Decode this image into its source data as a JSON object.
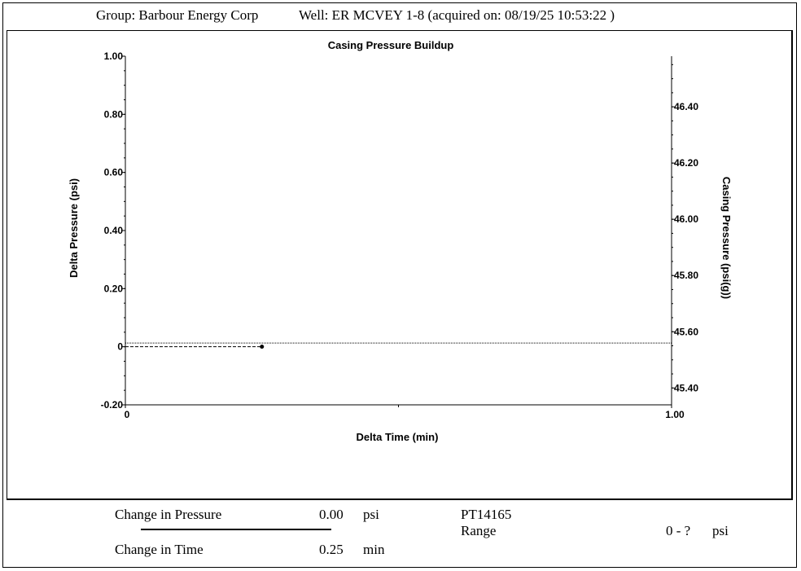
{
  "header": {
    "group": "Group: Barbour Energy Corp",
    "well": "Well: ER MCVEY 1-8 (acquired on: 08/19/25 10:53:22 )"
  },
  "chart_data": {
    "type": "line",
    "title": "Casing Pressure Buildup",
    "xlabel": "Delta Time (min)",
    "ylabel": "Delta Pressure (psi)",
    "y2label": "Casing Pressure (psi(g))",
    "xlim": [
      0,
      1.0
    ],
    "ylim": [
      -0.2,
      1.0
    ],
    "y2lim": [
      45.34,
      46.58
    ],
    "x_ticks": [
      "0",
      "1.00"
    ],
    "y_ticks": [
      {
        "v": 1.0,
        "label": "1.00"
      },
      {
        "v": 0.8,
        "label": "0.80"
      },
      {
        "v": 0.6,
        "label": "0.60"
      },
      {
        "v": 0.4,
        "label": "0.40"
      },
      {
        "v": 0.2,
        "label": "0.20"
      },
      {
        "v": 0.0,
        "label": "0"
      },
      {
        "v": -0.2,
        "label": "-0.20"
      }
    ],
    "y2_ticks": [
      {
        "v": 46.4,
        "label": "46.40"
      },
      {
        "v": 46.2,
        "label": "46.20"
      },
      {
        "v": 46.0,
        "label": "46.00"
      },
      {
        "v": 45.8,
        "label": "45.80"
      },
      {
        "v": 45.6,
        "label": "45.60"
      },
      {
        "v": 45.4,
        "label": "45.40"
      }
    ],
    "series": [
      {
        "axis": "left",
        "style": "dashed",
        "x": [
          0,
          0.25
        ],
        "y": [
          0,
          0
        ]
      },
      {
        "axis": "right",
        "style": "dotted",
        "x": [
          0,
          1.0
        ],
        "y": [
          45.56,
          45.56
        ]
      }
    ],
    "marker": {
      "x": 0.25,
      "y": 0
    }
  },
  "footer": {
    "change_pressure_label": "Change in Pressure",
    "change_pressure_value": "0.00",
    "change_pressure_unit": "psi",
    "change_time_label": "Change in Time",
    "change_time_value": "0.25",
    "change_time_unit": "min",
    "gauge_id": "PT14165",
    "range_label": "Range",
    "range_value": "0 - ?",
    "range_unit": "psi"
  }
}
